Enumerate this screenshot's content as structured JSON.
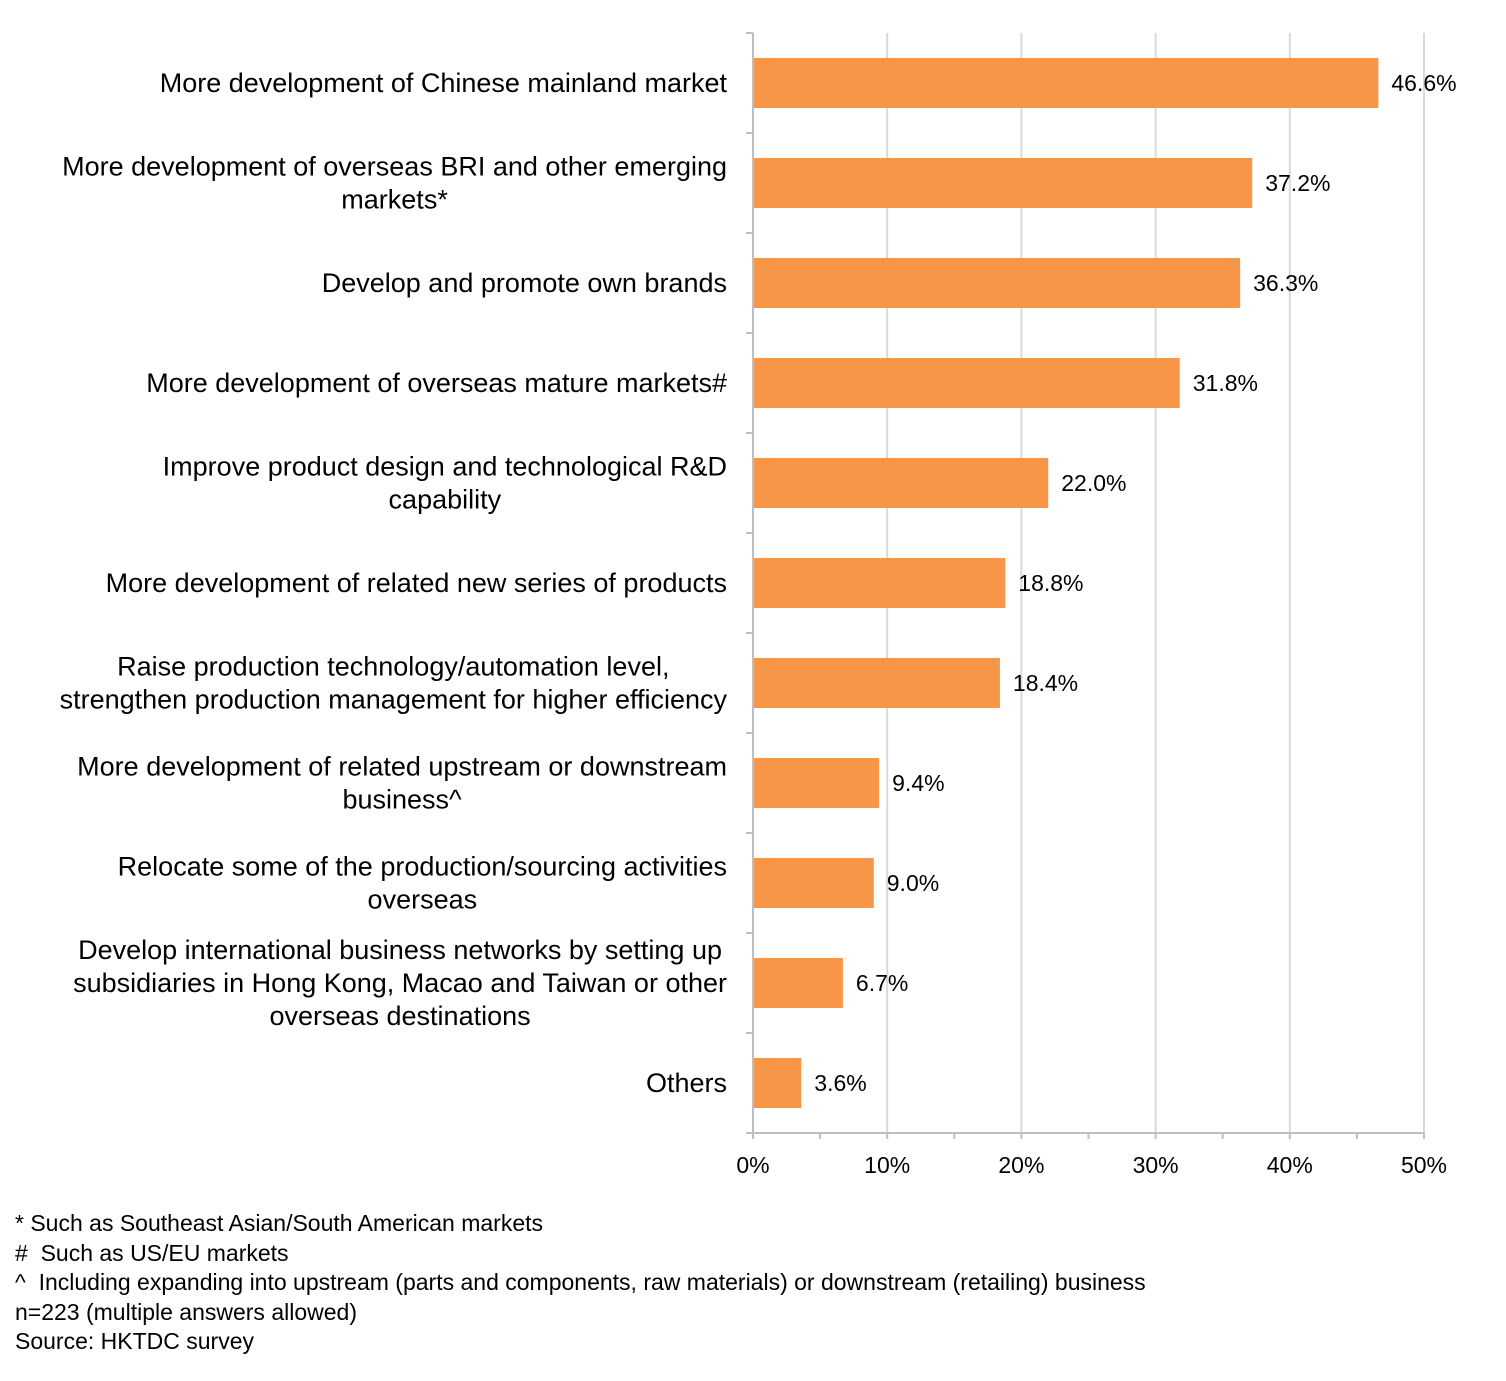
{
  "chart_data": {
    "type": "bar",
    "orientation": "horizontal",
    "categories": [
      [
        "More development of Chinese mainland market"
      ],
      [
        "More development of overseas BRI and other emerging",
        "markets*"
      ],
      [
        "Develop and promote own brands"
      ],
      [
        "More development of overseas mature markets#"
      ],
      [
        "Improve product design and technological R&D",
        "capability"
      ],
      [
        "More development of related new series of products"
      ],
      [
        "Raise production technology/automation level,",
        "strengthen production management for higher efficiency"
      ],
      [
        "More development of related upstream or downstream",
        "business^"
      ],
      [
        "Relocate some of the production/sourcing activities",
        "overseas"
      ],
      [
        "Develop international business networks by setting up",
        "subsidiaries in Hong Kong, Macao and Taiwan or other",
        "overseas destinations"
      ],
      [
        "Others"
      ]
    ],
    "values": [
      46.6,
      37.2,
      36.3,
      31.8,
      22.0,
      18.8,
      18.4,
      9.4,
      9.0,
      6.7,
      3.6
    ],
    "value_labels": [
      "46.6%",
      "37.2%",
      "36.3%",
      "31.8%",
      "22.0%",
      "18.8%",
      "18.4%",
      "9.4%",
      "9.0%",
      "6.7%",
      "3.6%"
    ],
    "xlim": [
      0,
      50
    ],
    "xticks": [
      0,
      10,
      20,
      30,
      40,
      50
    ],
    "xtick_labels": [
      "0%",
      "10%",
      "20%",
      "30%",
      "40%",
      "50%"
    ],
    "grid": true,
    "legend": "none",
    "bar_color": "#F79646",
    "grid_color": "#D9D9D9",
    "axis_color": "#BFBFBF"
  },
  "notes": [
    "* Such as Southeast Asian/South American markets",
    "#  Such as US/EU markets",
    "^  Including expanding into upstream (parts and components, raw materials) or downstream (retailing) business",
    "n=223 (multiple answers allowed)",
    "Source: HKTDC survey"
  ]
}
